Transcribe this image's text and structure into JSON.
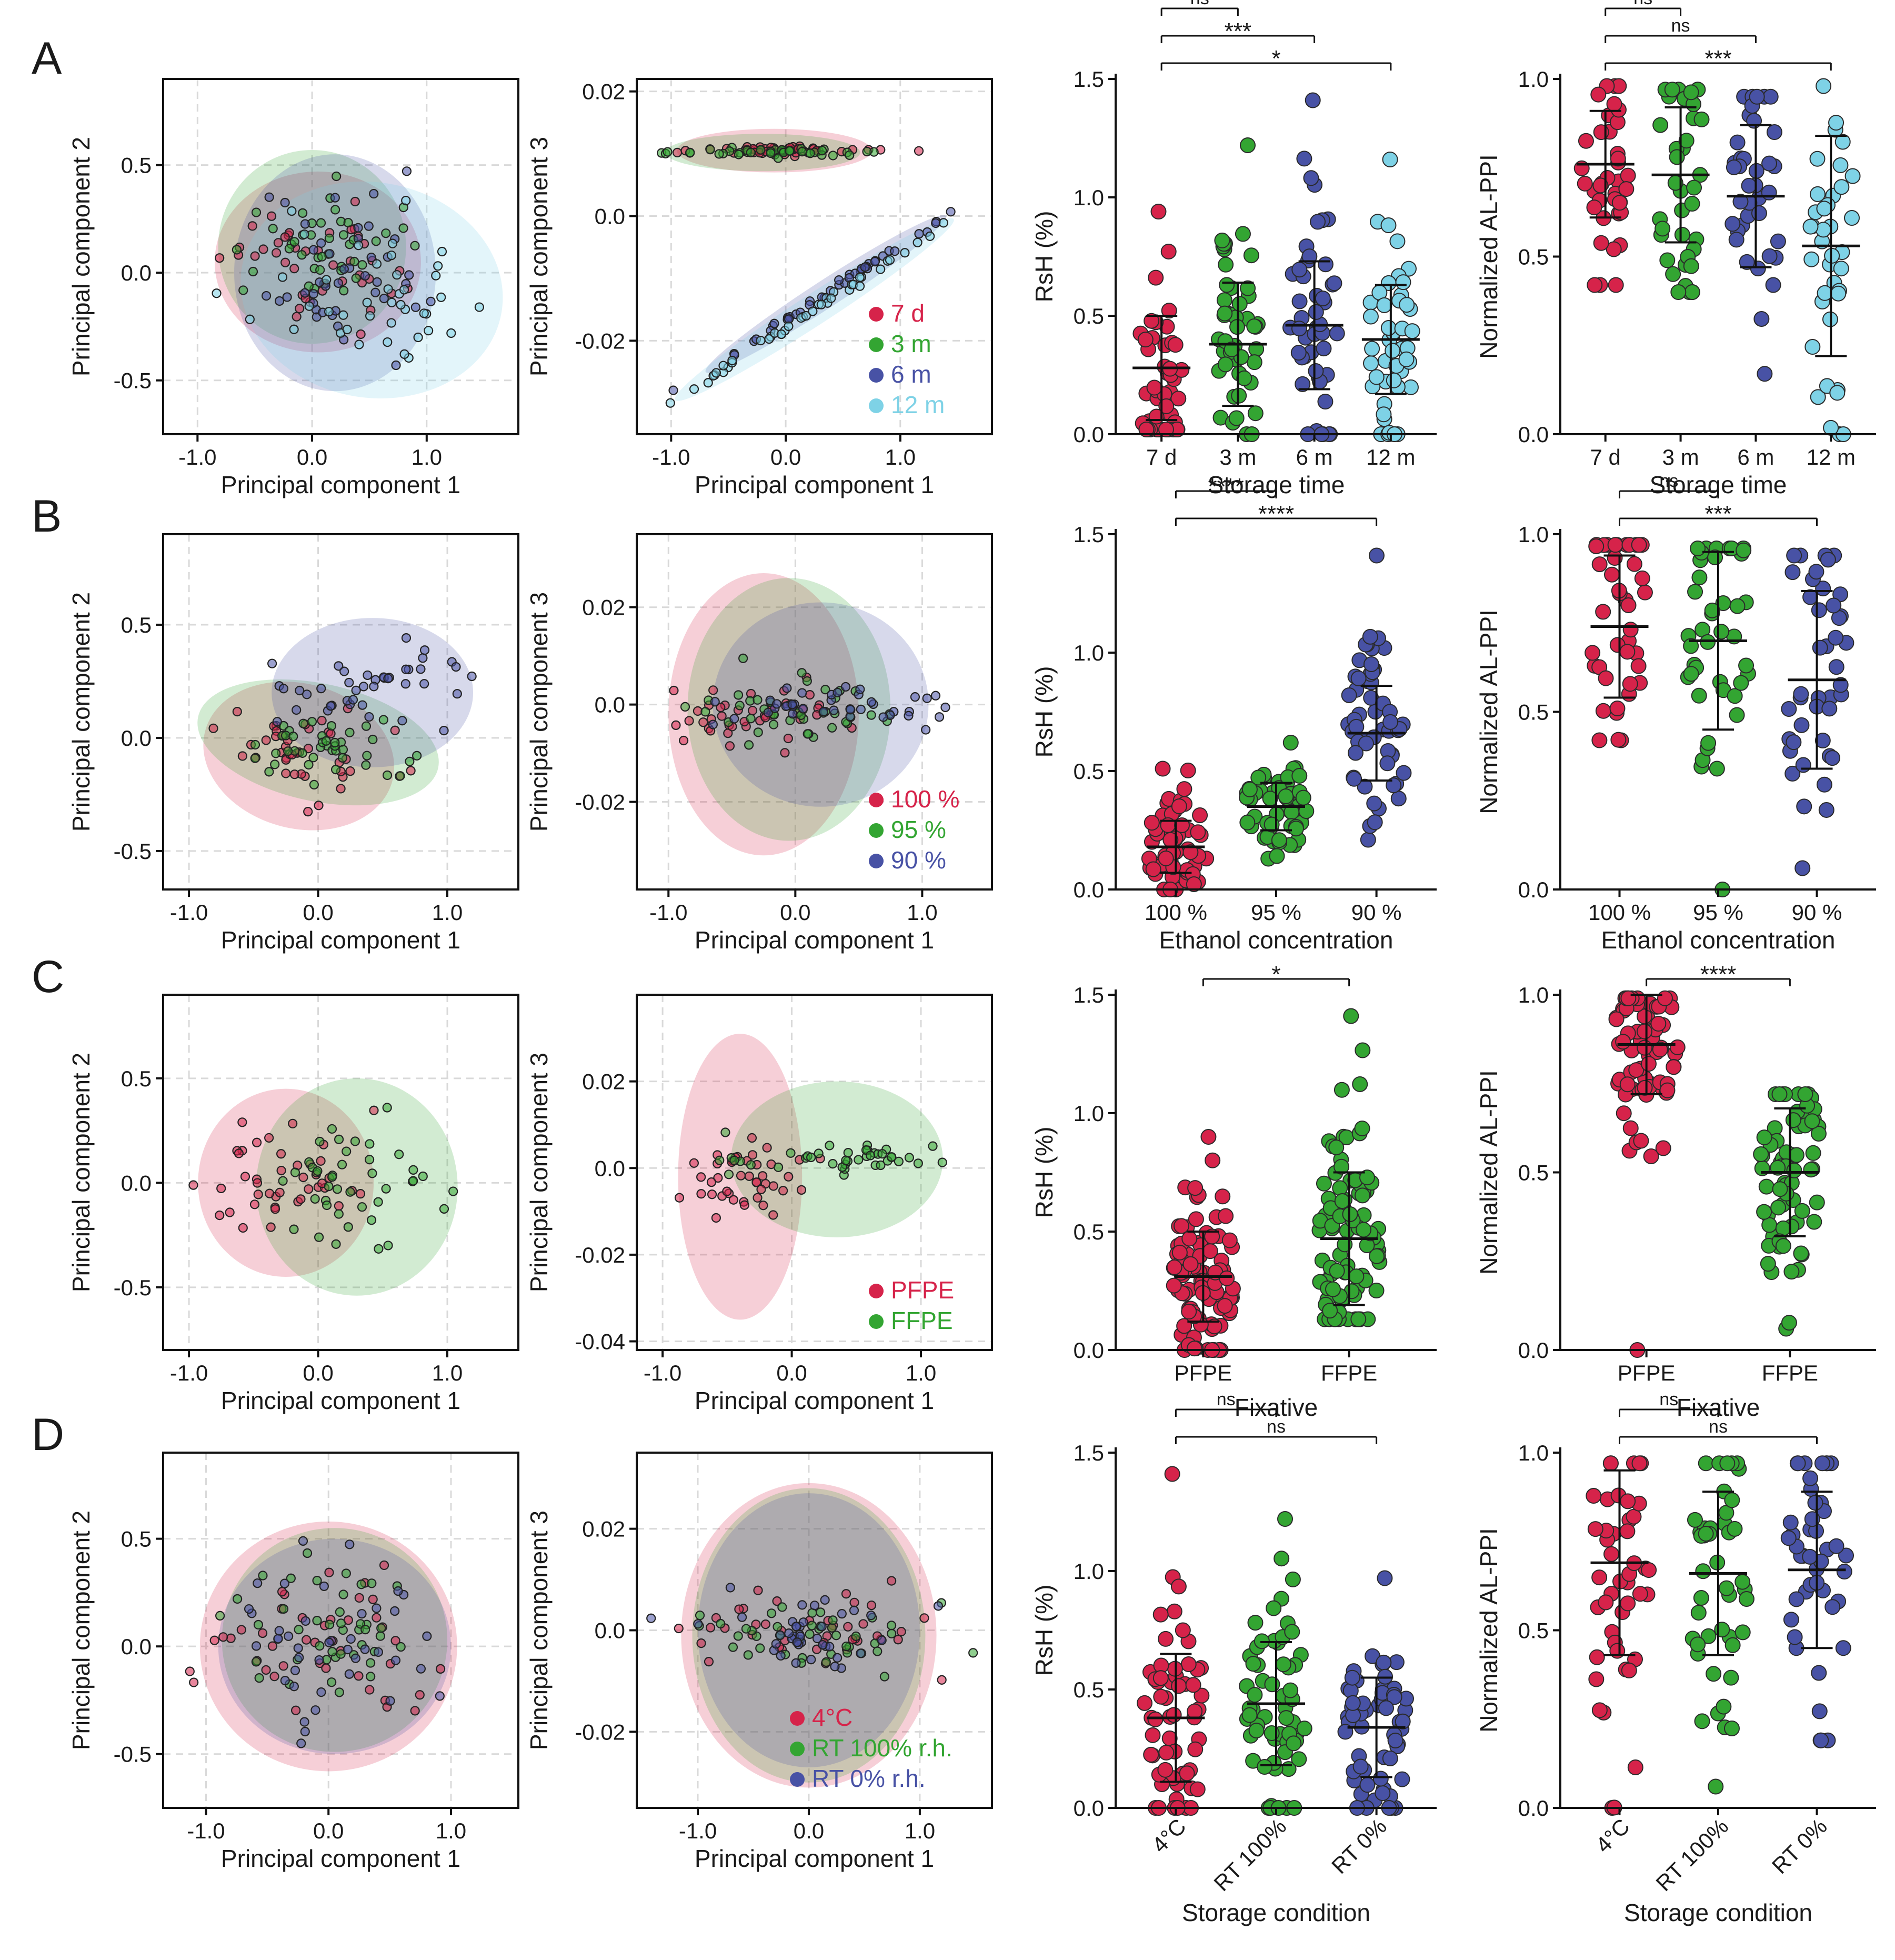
{
  "figure": {
    "panels": [
      {
        "letter": "A",
        "variable": "Storage time"
      },
      {
        "letter": "B",
        "variable": "Ethanol concentration"
      },
      {
        "letter": "C",
        "variable": "Fixative"
      },
      {
        "letter": "D",
        "variable": "Storage condition"
      }
    ]
  },
  "chart_data": [
    {
      "panel": "A",
      "type": "scatter",
      "role": "pca12",
      "xlabel": "Principal component 1",
      "ylabel": "Principal component 2",
      "xlim": [
        -1.3,
        1.8
      ],
      "ylim": [
        -0.75,
        0.9
      ],
      "xticks": [
        -1.0,
        0.0,
        1.0
      ],
      "xtick_labels": [
        "-1.0",
        "0.0",
        "1.0"
      ],
      "yticks": [
        -0.5,
        0.0,
        0.5
      ],
      "ytick_labels": [
        "-0.5",
        "0.0",
        "0.5"
      ],
      "groups": [
        "7 d",
        "3 m",
        "6 m",
        "12 m"
      ],
      "colors": [
        "#d6234a",
        "#33a532",
        "#4852a5",
        "#7ed2e6"
      ],
      "ellipses": [
        {
          "cx": 0.05,
          "cy": 0.05,
          "rx": 0.9,
          "ry": 0.42,
          "angle": 0
        },
        {
          "cx": 0.0,
          "cy": 0.12,
          "rx": 0.82,
          "ry": 0.45,
          "angle": 0
        },
        {
          "cx": 0.2,
          "cy": 0.0,
          "rx": 0.88,
          "ry": 0.55,
          "angle": 0
        },
        {
          "cx": 0.52,
          "cy": -0.08,
          "rx": 1.15,
          "ry": 0.5,
          "angle": -10
        }
      ]
    },
    {
      "panel": "A",
      "type": "scatter",
      "role": "pca13",
      "xlabel": "Principal component 1",
      "ylabel": "Principal component 3",
      "xlim": [
        -1.3,
        1.8
      ],
      "ylim": [
        -0.035,
        0.022
      ],
      "xticks": [
        -1.0,
        0.0,
        1.0
      ],
      "xtick_labels": [
        "-1.0",
        "0.0",
        "1.0"
      ],
      "yticks": [
        -0.02,
        0.0,
        0.02
      ],
      "ytick_labels": [
        "-0.02",
        "0.0",
        "0.02"
      ],
      "groups": [
        "7 d",
        "3 m",
        "6 m",
        "12 m"
      ],
      "colors": [
        "#d6234a",
        "#33a532",
        "#4852a5",
        "#7ed2e6"
      ],
      "ellipses": [
        {
          "cx": -0.1,
          "cy": 0.0105,
          "rx": 0.85,
          "ry": 0.0035,
          "angle": 0
        },
        {
          "cx": -0.2,
          "cy": 0.0102,
          "rx": 0.85,
          "ry": 0.003,
          "angle": 0
        },
        {
          "cx": 0.35,
          "cy": -0.0125,
          "rx": 1.25,
          "ry": 0.0022,
          "angle": 33
        },
        {
          "cx": 0.25,
          "cy": -0.015,
          "rx": 1.45,
          "ry": 0.0025,
          "angle": 33
        }
      ],
      "legend": [
        "7 d",
        "3 m",
        "6 m",
        "12 m"
      ]
    },
    {
      "panel": "A",
      "type": "dot",
      "role": "rsh",
      "xlabel": "Storage time",
      "ylabel": "RsH (%)",
      "ylim": [
        0,
        1.5
      ],
      "yticks": [
        0.0,
        0.5,
        1.0,
        1.5
      ],
      "ytick_labels": [
        "0.0",
        "0.5",
        "1.0",
        "1.5"
      ],
      "categories": [
        "7 d",
        "3 m",
        "6 m",
        "12 m"
      ],
      "colors": [
        "#d6234a",
        "#33a532",
        "#4852a5",
        "#7ed2e6"
      ],
      "means": [
        0.28,
        0.38,
        0.46,
        0.4
      ],
      "sd": [
        0.22,
        0.26,
        0.27,
        0.23
      ],
      "maxima": [
        0.94,
        1.22,
        1.41,
        1.16
      ],
      "minima": [
        0.02,
        0.0,
        0.0,
        0.0
      ],
      "n": 48,
      "comparisons": [
        {
          "from": 0,
          "to": 1,
          "label": "ns"
        },
        {
          "from": 0,
          "to": 2,
          "label": "***"
        },
        {
          "from": 0,
          "to": 3,
          "label": "*"
        }
      ]
    },
    {
      "panel": "A",
      "type": "dot",
      "role": "alppi",
      "xlabel": "Storage time",
      "ylabel": "Normalized AL-PPI",
      "ylim": [
        0,
        1.0
      ],
      "yticks": [
        0.0,
        0.5,
        1.0
      ],
      "ytick_labels": [
        "0.0",
        "0.5",
        "1.0"
      ],
      "categories": [
        "7 d",
        "3 m",
        "6 m",
        "12 m"
      ],
      "colors": [
        "#d6234a",
        "#33a532",
        "#4852a5",
        "#7ed2e6"
      ],
      "means": [
        0.76,
        0.73,
        0.67,
        0.53
      ],
      "sd": [
        0.15,
        0.19,
        0.2,
        0.31
      ],
      "maxima": [
        0.98,
        0.97,
        0.95,
        0.98
      ],
      "minima": [
        0.42,
        0.4,
        0.17,
        0.0
      ],
      "n": 38,
      "comparisons": [
        {
          "from": 0,
          "to": 1,
          "label": "ns"
        },
        {
          "from": 0,
          "to": 2,
          "label": "ns"
        },
        {
          "from": 0,
          "to": 3,
          "label": "***"
        }
      ]
    },
    {
      "panel": "B",
      "type": "scatter",
      "role": "pca12",
      "xlabel": "Principal component 1",
      "ylabel": "Principal component 2",
      "xlim": [
        -1.2,
        1.55
      ],
      "ylim": [
        -0.67,
        0.9
      ],
      "xticks": [
        -1.0,
        0.0,
        1.0
      ],
      "xtick_labels": [
        "-1.0",
        "0.0",
        "1.0"
      ],
      "yticks": [
        -0.5,
        0.0,
        0.5
      ],
      "ytick_labels": [
        "-0.5",
        "0.0",
        "0.5"
      ],
      "groups": [
        "100 %",
        "95 %",
        "90 %"
      ],
      "colors": [
        "#d6234a",
        "#33a532",
        "#4852a5"
      ],
      "ellipses": [
        {
          "cx": -0.15,
          "cy": -0.08,
          "rx": 0.75,
          "ry": 0.32,
          "angle": -15
        },
        {
          "cx": 0.0,
          "cy": -0.02,
          "rx": 0.95,
          "ry": 0.26,
          "angle": -12
        },
        {
          "cx": 0.42,
          "cy": 0.2,
          "rx": 0.78,
          "ry": 0.33,
          "angle": 0
        }
      ]
    },
    {
      "panel": "B",
      "type": "scatter",
      "role": "pca13",
      "xlabel": "Principal component 1",
      "ylabel": "Principal component 3",
      "xlim": [
        -1.25,
        1.55
      ],
      "ylim": [
        -0.038,
        0.035
      ],
      "xticks": [
        -1.0,
        0.0,
        1.0
      ],
      "xtick_labels": [
        "-1.0",
        "0.0",
        "1.0"
      ],
      "yticks": [
        -0.02,
        0.0,
        0.02
      ],
      "ytick_labels": [
        "-0.02",
        "0.0",
        "0.02"
      ],
      "groups": [
        "100 %",
        "95 %",
        "90 %"
      ],
      "colors": [
        "#d6234a",
        "#33a532",
        "#4852a5"
      ],
      "ellipses": [
        {
          "cx": -0.25,
          "cy": -0.002,
          "rx": 0.75,
          "ry": 0.029,
          "angle": 0
        },
        {
          "cx": -0.05,
          "cy": -0.001,
          "rx": 0.8,
          "ry": 0.027,
          "angle": 0
        },
        {
          "cx": 0.2,
          "cy": 0.0,
          "rx": 0.85,
          "ry": 0.021,
          "angle": 0
        }
      ],
      "legend": [
        "100 %",
        "95 %",
        "90 %"
      ]
    },
    {
      "panel": "B",
      "type": "dot",
      "role": "rsh",
      "xlabel": "Ethanol concentration",
      "ylabel": "RsH (%)",
      "ylim": [
        0,
        1.5
      ],
      "yticks": [
        0.0,
        0.5,
        1.0,
        1.5
      ],
      "ytick_labels": [
        "0.0",
        "0.5",
        "1.0",
        "1.5"
      ],
      "categories": [
        "100 %",
        "95 %",
        "90 %"
      ],
      "colors": [
        "#d6234a",
        "#33a532",
        "#4852a5"
      ],
      "means": [
        0.18,
        0.35,
        0.66
      ],
      "sd": [
        0.11,
        0.1,
        0.2
      ],
      "maxima": [
        0.51,
        0.62,
        1.41
      ],
      "minima": [
        0.0,
        0.13,
        0.21
      ],
      "n": 55,
      "comparisons": [
        {
          "from": 0,
          "to": 1,
          "label": "****"
        },
        {
          "from": 0,
          "to": 2,
          "label": "****"
        }
      ]
    },
    {
      "panel": "B",
      "type": "dot",
      "role": "alppi",
      "xlabel": "Ethanol concentration",
      "ylabel": "Normalized AL-PPI",
      "ylim": [
        0,
        1.0
      ],
      "yticks": [
        0.0,
        0.5,
        1.0
      ],
      "ytick_labels": [
        "0.0",
        "0.5",
        "1.0"
      ],
      "categories": [
        "100 %",
        "95 %",
        "90 %"
      ],
      "colors": [
        "#d6234a",
        "#33a532",
        "#4852a5"
      ],
      "means": [
        0.74,
        0.7,
        0.59
      ],
      "sd": [
        0.2,
        0.25,
        0.25
      ],
      "maxima": [
        0.97,
        0.96,
        0.94
      ],
      "minima": [
        0.42,
        0.0,
        0.06
      ],
      "n": 42,
      "comparisons": [
        {
          "from": 0,
          "to": 1,
          "label": "ns"
        },
        {
          "from": 0,
          "to": 2,
          "label": "***"
        }
      ]
    },
    {
      "panel": "C",
      "type": "scatter",
      "role": "pca12",
      "xlabel": "Principal component 1",
      "ylabel": "Principal component 2",
      "xlim": [
        -1.2,
        1.55
      ],
      "ylim": [
        -0.8,
        0.9
      ],
      "xticks": [
        -1.0,
        0.0,
        1.0
      ],
      "xtick_labels": [
        "-1.0",
        "0.0",
        "1.0"
      ],
      "yticks": [
        -0.5,
        0.0,
        0.5
      ],
      "ytick_labels": [
        "-0.5",
        "0.0",
        "0.5"
      ],
      "groups": [
        "PFPE",
        "FFPE"
      ],
      "colors": [
        "#d6234a",
        "#33a532"
      ],
      "ellipses": [
        {
          "cx": -0.25,
          "cy": 0.0,
          "rx": 0.68,
          "ry": 0.45,
          "angle": 0
        },
        {
          "cx": 0.3,
          "cy": -0.02,
          "rx": 0.78,
          "ry": 0.52,
          "angle": 0
        }
      ]
    },
    {
      "panel": "C",
      "type": "scatter",
      "role": "pca13",
      "xlabel": "Principal component 1",
      "ylabel": "Principal component 3",
      "xlim": [
        -1.2,
        1.55
      ],
      "ylim": [
        -0.042,
        0.04
      ],
      "xticks": [
        -1.0,
        0.0,
        1.0
      ],
      "xtick_labels": [
        "-1.0",
        "0.0",
        "1.0"
      ],
      "yticks": [
        -0.04,
        -0.02,
        0.0,
        0.02
      ],
      "ytick_labels": [
        "-0.04",
        "-0.02",
        "0.0",
        "0.02"
      ],
      "groups": [
        "PFPE",
        "FFPE"
      ],
      "colors": [
        "#d6234a",
        "#33a532"
      ],
      "ellipses": [
        {
          "cx": -0.4,
          "cy": -0.002,
          "rx": 0.48,
          "ry": 0.033,
          "angle": 0
        },
        {
          "cx": 0.35,
          "cy": 0.002,
          "rx": 0.82,
          "ry": 0.018,
          "angle": 0
        }
      ],
      "legend": [
        "PFPE",
        "FFPE"
      ]
    },
    {
      "panel": "C",
      "type": "dot",
      "role": "rsh",
      "xlabel": "Fixative",
      "ylabel": "RsH (%)",
      "ylim": [
        0,
        1.5
      ],
      "yticks": [
        0.0,
        0.5,
        1.0,
        1.5
      ],
      "ytick_labels": [
        "0.0",
        "0.5",
        "1.0",
        "1.5"
      ],
      "categories": [
        "PFPE",
        "FFPE"
      ],
      "colors": [
        "#d6234a",
        "#33a532"
      ],
      "means": [
        0.31,
        0.47
      ],
      "sd": [
        0.19,
        0.28
      ],
      "maxima": [
        0.9,
        1.41
      ],
      "minima": [
        0.0,
        0.13
      ],
      "n": 90,
      "comparisons": [
        {
          "from": 0,
          "to": 1,
          "label": "*"
        }
      ]
    },
    {
      "panel": "C",
      "type": "dot",
      "role": "alppi",
      "xlabel": "Fixative",
      "ylabel": "Normalized AL-PPI",
      "ylim": [
        0,
        1.0
      ],
      "yticks": [
        0.0,
        0.5,
        1.0
      ],
      "ytick_labels": [
        "0.0",
        "0.5",
        "1.0"
      ],
      "categories": [
        "PFPE",
        "FFPE"
      ],
      "colors": [
        "#d6234a",
        "#33a532"
      ],
      "means": [
        0.86,
        0.5
      ],
      "sd": [
        0.14,
        0.18
      ],
      "maxima": [
        0.99,
        0.72
      ],
      "minima": [
        0.0,
        0.06
      ],
      "n": 70,
      "comparisons": [
        {
          "from": 0,
          "to": 1,
          "label": "****"
        }
      ]
    },
    {
      "panel": "D",
      "type": "scatter",
      "role": "pca12",
      "xlabel": "Principal component 1",
      "ylabel": "Principal component 2",
      "xlim": [
        -1.35,
        1.55
      ],
      "ylim": [
        -0.75,
        0.9
      ],
      "xticks": [
        -1.0,
        0.0,
        1.0
      ],
      "xtick_labels": [
        "-1.0",
        "0.0",
        "1.0"
      ],
      "yticks": [
        -0.5,
        0.0,
        0.5
      ],
      "ytick_labels": [
        "-0.5",
        "0.0",
        "0.5"
      ],
      "groups": [
        "4°C",
        "RT 100% r.h.",
        "RT 0% r.h."
      ],
      "colors": [
        "#d6234a",
        "#33a532",
        "#4852a5"
      ],
      "ellipses": [
        {
          "cx": 0.0,
          "cy": 0.0,
          "rx": 1.05,
          "ry": 0.58,
          "angle": 0
        },
        {
          "cx": 0.05,
          "cy": 0.03,
          "rx": 0.92,
          "ry": 0.52,
          "angle": 0
        },
        {
          "cx": 0.05,
          "cy": 0.0,
          "rx": 0.95,
          "ry": 0.5,
          "angle": 0
        }
      ]
    },
    {
      "panel": "D",
      "type": "scatter",
      "role": "pca13",
      "xlabel": "Principal component 1",
      "ylabel": "Principal component 3",
      "xlim": [
        -1.55,
        1.65
      ],
      "ylim": [
        -0.035,
        0.035
      ],
      "xticks": [
        -1.0,
        0.0,
        1.0
      ],
      "xtick_labels": [
        "-1.0",
        "0.0",
        "1.0"
      ],
      "yticks": [
        -0.02,
        0.0,
        0.02
      ],
      "ytick_labels": [
        "-0.02",
        "0.0",
        "0.02"
      ],
      "groups": [
        "4°C",
        "RT 100% r.h.",
        "RT 0% r.h."
      ],
      "colors": [
        "#d6234a",
        "#33a532",
        "#4852a5"
      ],
      "ellipses": [
        {
          "cx": 0.0,
          "cy": -0.001,
          "rx": 1.15,
          "ry": 0.03,
          "angle": 0
        },
        {
          "cx": 0.0,
          "cy": -0.001,
          "rx": 1.05,
          "ry": 0.029,
          "angle": 0
        },
        {
          "cx": 0.0,
          "cy": 0.0,
          "rx": 1.0,
          "ry": 0.027,
          "angle": 0
        }
      ],
      "legend": [
        "4°C",
        "RT 100% r.h.",
        "RT 0% r.h."
      ]
    },
    {
      "panel": "D",
      "type": "dot",
      "role": "rsh",
      "xlabel": "Storage condition",
      "ylabel": "RsH (%)",
      "ylim": [
        0,
        1.5
      ],
      "yticks": [
        0.0,
        0.5,
        1.0,
        1.5
      ],
      "ytick_labels": [
        "0.0",
        "0.5",
        "1.0",
        "1.5"
      ],
      "categories": [
        "4°C",
        "RT 100%",
        "RT 0%"
      ],
      "colors": [
        "#d6234a",
        "#33a532",
        "#4852a5"
      ],
      "means": [
        0.38,
        0.44,
        0.34
      ],
      "sd": [
        0.27,
        0.26,
        0.21
      ],
      "maxima": [
        1.41,
        1.22,
        0.97
      ],
      "minima": [
        0.0,
        0.0,
        0.0
      ],
      "n": 60,
      "comparisons": [
        {
          "from": 0,
          "to": 1,
          "label": "ns"
        },
        {
          "from": 0,
          "to": 2,
          "label": "ns"
        }
      ]
    },
    {
      "panel": "D",
      "type": "dot",
      "role": "alppi",
      "xlabel": "Storage condition",
      "ylabel": "Normalized AL-PPI",
      "ylim": [
        0,
        1.0
      ],
      "yticks": [
        0.0,
        0.5,
        1.0
      ],
      "ytick_labels": [
        "0.0",
        "0.5",
        "1.0"
      ],
      "categories": [
        "4°C",
        "RT 100%",
        "RT 0%"
      ],
      "colors": [
        "#d6234a",
        "#33a532",
        "#4852a5"
      ],
      "means": [
        0.69,
        0.66,
        0.67
      ],
      "sd": [
        0.26,
        0.23,
        0.22
      ],
      "maxima": [
        0.97,
        0.97,
        0.97
      ],
      "minima": [
        0.0,
        0.06,
        0.19
      ],
      "n": 45,
      "comparisons": [
        {
          "from": 0,
          "to": 1,
          "label": "ns"
        },
        {
          "from": 0,
          "to": 2,
          "label": "ns"
        }
      ]
    }
  ]
}
